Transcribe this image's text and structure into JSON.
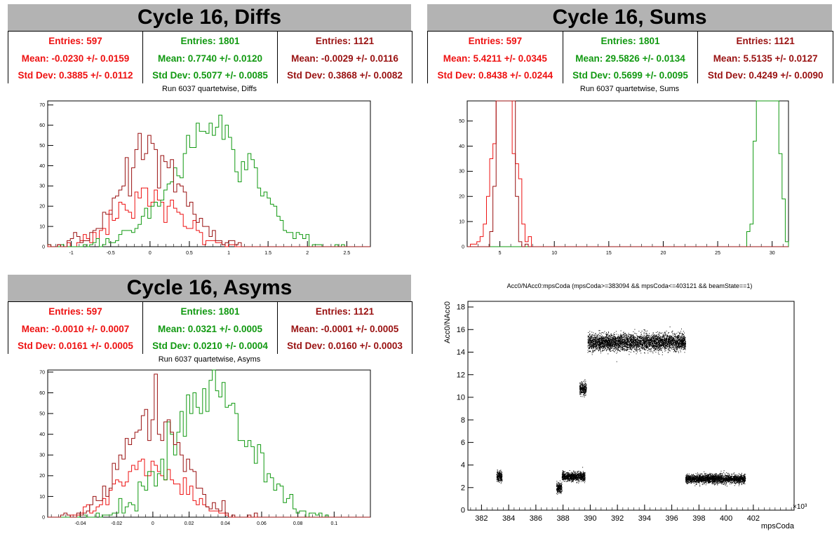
{
  "colors": {
    "red": "#ee1111",
    "green": "#119911",
    "darkred": "#991111"
  },
  "panels": {
    "diffs": {
      "title": "Cycle 16, Diffs",
      "subtitle": "Run 6037 quartetwise, Diffs",
      "stats": [
        {
          "entries": "Entries: 597",
          "mean": "Mean: -0.0230 +/- 0.0159",
          "std": "Std Dev: 0.3885 +/- 0.0112"
        },
        {
          "entries": "Entries: 1801",
          "mean": "Mean: 0.7740 +/- 0.0120",
          "std": "Std Dev: 0.5077 +/- 0.0085"
        },
        {
          "entries": "Entries: 1121",
          "mean": "Mean: -0.0029 +/- 0.0116",
          "std": "Std Dev: 0.3868 +/- 0.0082"
        }
      ]
    },
    "sums": {
      "title": "Cycle 16, Sums",
      "subtitle": "Run 6037 quartetwise, Sums",
      "stats": [
        {
          "entries": "Entries: 597",
          "mean": "Mean: 5.4211 +/- 0.0345",
          "std": "Std Dev: 0.8438 +/- 0.0244"
        },
        {
          "entries": "Entries: 1801",
          "mean": "Mean: 29.5826 +/- 0.0134",
          "std": "Std Dev: 0.5699 +/- 0.0095"
        },
        {
          "entries": "Entries: 1121",
          "mean": "Mean: 5.5135 +/- 0.0127",
          "std": "Std Dev: 0.4249 +/- 0.0090"
        }
      ]
    },
    "asyms": {
      "title": "Cycle 16, Asyms",
      "subtitle": "Run 6037 quartetwise, Asyms",
      "stats": [
        {
          "entries": "Entries: 597",
          "mean": "Mean: -0.0010 +/- 0.0007",
          "std": "Std Dev: 0.0161 +/- 0.0005"
        },
        {
          "entries": "Entries: 1801",
          "mean": "Mean: 0.0321 +/- 0.0005",
          "std": "Std Dev: 0.0210 +/- 0.0004"
        },
        {
          "entries": "Entries: 1121",
          "mean": "Mean: -0.0001 +/- 0.0005",
          "std": "Std Dev: 0.0160 +/- 0.0003"
        }
      ]
    },
    "scatter": {
      "title": "Acc0/NAcc0:mpsCoda (mpsCoda>=383094 && mpsCoda<=403121 && beamState==1)"
    }
  },
  "chart_data": [
    {
      "type": "histogram",
      "id": "diffs",
      "xlim": [
        -1.3,
        2.8
      ],
      "ylim": [
        0,
        72
      ],
      "xticks": [
        -1,
        -0.5,
        0,
        0.5,
        1,
        1.5,
        2,
        2.5
      ],
      "xtick_labels": [
        "-1",
        "-0.5",
        "0",
        "0.5",
        "1",
        "1.5",
        "2",
        "2.5"
      ],
      "yticks": [
        0,
        10,
        20,
        30,
        40,
        50,
        60,
        70
      ],
      "series": [
        {
          "color": "red",
          "mean": -0.023,
          "std": 0.3885,
          "entries": 597
        },
        {
          "color": "green",
          "mean": 0.774,
          "std": 0.5077,
          "entries": 1801
        },
        {
          "color": "darkred",
          "mean": -0.0029,
          "std": 0.3868,
          "entries": 1121
        }
      ]
    },
    {
      "type": "histogram",
      "id": "sums",
      "xlim": [
        2,
        31.5
      ],
      "ylim": [
        0,
        58
      ],
      "xticks": [
        5,
        10,
        15,
        20,
        25,
        30
      ],
      "xtick_labels": [
        "5",
        "10",
        "15",
        "20",
        "25",
        "30"
      ],
      "yticks": [
        0,
        10,
        20,
        30,
        40,
        50
      ],
      "series": [
        {
          "color": "red",
          "mean": 5.4211,
          "std": 0.8438,
          "entries": 597
        },
        {
          "color": "green",
          "mean": 29.5826,
          "std": 0.5699,
          "entries": 1801
        },
        {
          "color": "darkred",
          "mean": 5.5135,
          "std": 0.4249,
          "entries": 1121
        }
      ]
    },
    {
      "type": "histogram",
      "id": "asyms",
      "xlim": [
        -0.058,
        0.12
      ],
      "ylim": [
        0,
        71
      ],
      "xticks": [
        -0.04,
        -0.02,
        0,
        0.02,
        0.04,
        0.06,
        0.08,
        0.1
      ],
      "xtick_labels": [
        "-0.04",
        "-0.02",
        "0",
        "0.02",
        "0.04",
        "0.06",
        "0.08",
        "0.1"
      ],
      "yticks": [
        0,
        10,
        20,
        30,
        40,
        50,
        60,
        70
      ],
      "series": [
        {
          "color": "red",
          "mean": -0.001,
          "std": 0.0161,
          "entries": 597
        },
        {
          "color": "green",
          "mean": 0.0321,
          "std": 0.021,
          "entries": 1801
        },
        {
          "color": "darkred",
          "mean": -0.0001,
          "std": 0.016,
          "entries": 1121
        }
      ]
    },
    {
      "type": "scatter",
      "id": "scatter",
      "xlabel": "mpsCoda",
      "ylabel": "Acc0/NAcc0",
      "xscale_label": "×10³",
      "xlim": [
        381,
        405
      ],
      "ylim": [
        0,
        18.5
      ],
      "xticks": [
        382,
        384,
        386,
        388,
        390,
        392,
        394,
        396,
        398,
        400,
        402
      ],
      "xtick_labels": [
        "382",
        "384",
        "386",
        "388",
        "390",
        "392",
        "394",
        "396",
        "398",
        "400",
        "402"
      ],
      "yticks": [
        0,
        2,
        4,
        6,
        8,
        10,
        12,
        14,
        16,
        18
      ],
      "clusters": [
        {
          "x": [
            383.1,
            383.5
          ],
          "y_center": 3.0,
          "y_spread": 0.4
        },
        {
          "x": [
            387.5,
            387.9
          ],
          "y_center": 2.0,
          "y_spread": 0.4
        },
        {
          "x": [
            387.9,
            389.6
          ],
          "y_center": 3.0,
          "y_spread": 0.35
        },
        {
          "x": [
            389.2,
            389.7
          ],
          "y_center": 10.8,
          "y_spread": 0.5
        },
        {
          "x": [
            389.8,
            397
          ],
          "y_center": 14.9,
          "y_spread": 0.65
        },
        {
          "x": [
            397,
            401.4
          ],
          "y_center": 2.8,
          "y_spread": 0.35
        }
      ]
    }
  ]
}
